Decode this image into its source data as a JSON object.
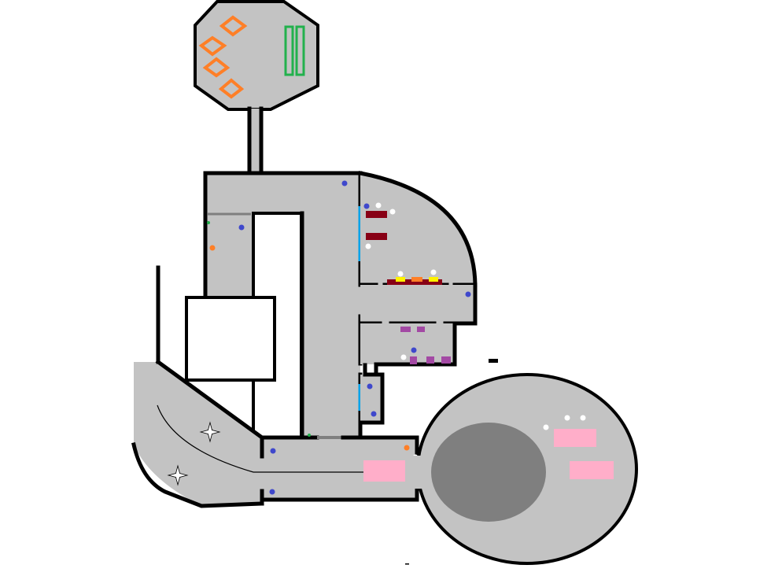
{
  "map": {
    "colors": {
      "background": "#ffffff",
      "floor": "#c3c3c3",
      "wall": "#000000",
      "pit": "#7f7f7f",
      "orange": "#ff7f27",
      "green": "#22b14c",
      "blue": "#3f48cc",
      "white": "#ffffff",
      "darkred": "#880015",
      "yellow": "#fff200",
      "purple": "#a349a4",
      "pink": "#ffaec9",
      "cyan": "#00a2e8"
    },
    "legend_icons": [
      "orange-diamond-icon",
      "green-bar-icon",
      "blue-dot-icon",
      "white-dot-icon",
      "star-icon",
      "pink-block-icon",
      "purple-block-icon",
      "darkred-bar-icon"
    ]
  }
}
